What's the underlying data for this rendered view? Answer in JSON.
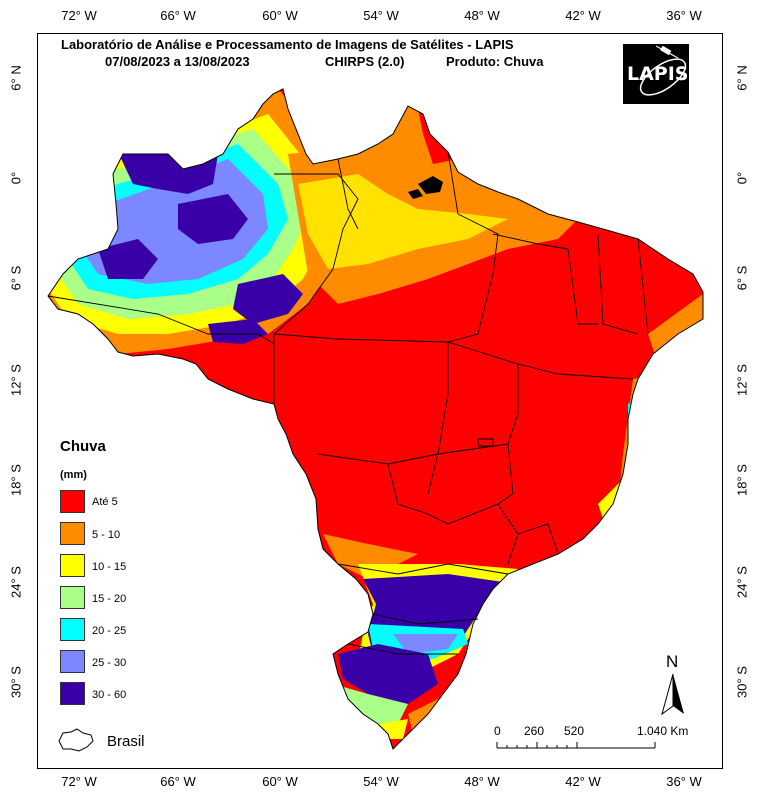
{
  "title": {
    "line1": "Laboratório de Análise e Processamento de Imagens de Satélites - LAPIS",
    "line2_dates": "07/08/2023  a 13/08/2023",
    "line2_source": "CHIRPS (2.0)",
    "line2_product": "Produto: Chuva"
  },
  "logo": {
    "text": "LAPIS",
    "icon": "satellite-icon"
  },
  "axes": {
    "longitude_ticks": [
      "72° W",
      "66° W",
      "60° W",
      "54° W",
      "48° W",
      "42° W",
      "36° W"
    ],
    "latitude_ticks_left": [
      "6° N",
      "0°",
      "6° S",
      "12° S",
      "18° S",
      "24° S",
      "30° S"
    ],
    "latitude_ticks_right": [
      "6° N",
      "0°",
      "6° S",
      "12° S",
      "18° S",
      "24° S",
      "30° S"
    ]
  },
  "legend": {
    "title": "Chuva",
    "unit": "(mm)",
    "items": [
      {
        "label": "Até 5",
        "color": "#ff0000"
      },
      {
        "label": "5 - 10",
        "color": "#ff8c00"
      },
      {
        "label": "10 - 15",
        "color": "#ffff00"
      },
      {
        "label": "15 - 20",
        "color": "#aaff88"
      },
      {
        "label": "20 - 25",
        "color": "#00ffff"
      },
      {
        "label": "25 - 30",
        "color": "#7b88ff"
      },
      {
        "label": "30 - 60",
        "color": "#3a00a8"
      }
    ],
    "boundary_label": "Brasil"
  },
  "north_arrow": {
    "label": "N"
  },
  "scale_bar": {
    "labels": [
      "0",
      "260",
      "520",
      "1.040 Km"
    ]
  }
}
